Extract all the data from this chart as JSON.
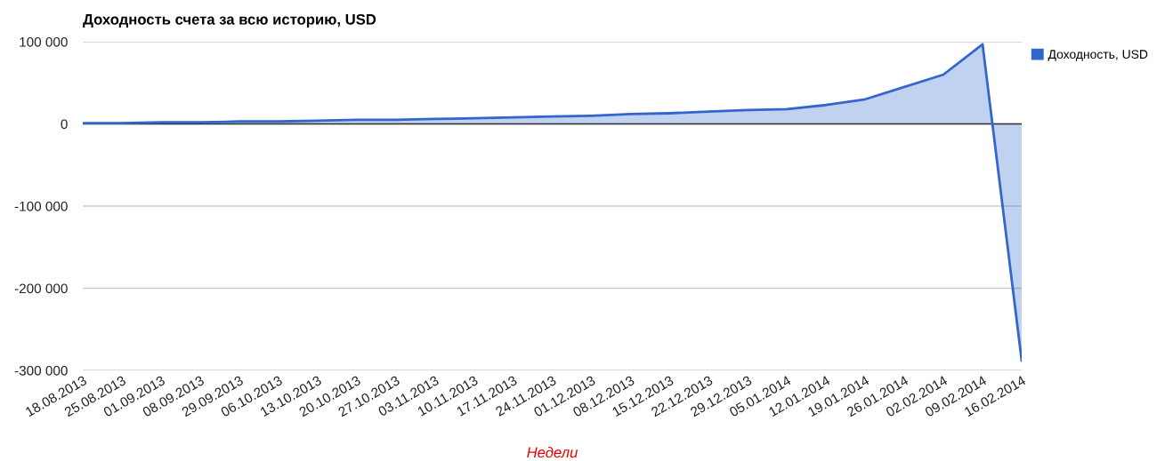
{
  "chart_data": {
    "type": "area",
    "title": "Доходность счета за всю историю, USD",
    "xlabel": "Недели",
    "categories": [
      "18.08.2013",
      "25.08.2013",
      "01.09.2013",
      "08.09.2013",
      "29.09.2013",
      "06.10.2013",
      "13.10.2013",
      "20.10.2013",
      "27.10.2013",
      "03.11.2013",
      "10.11.2013",
      "17.11.2013",
      "24.11.2013",
      "01.12.2013",
      "08.12.2013",
      "15.12.2013",
      "22.12.2013",
      "29.12.2013",
      "05.01.2014",
      "12.01.2014",
      "19.01.2014",
      "26.01.2014",
      "02.02.2014",
      "09.02.2014",
      "16.02.2014"
    ],
    "series": [
      {
        "name": "Доходность, USD",
        "color": "#3366cc",
        "values": [
          1000,
          1000,
          2000,
          2000,
          3000,
          3000,
          4000,
          5000,
          5000,
          6000,
          7000,
          8000,
          9000,
          10000,
          12000,
          13000,
          15000,
          17000,
          18000,
          23000,
          30000,
          45000,
          60000,
          97000,
          -288000
        ]
      }
    ],
    "ylim": [
      -300000,
      100000
    ],
    "yticks": [
      {
        "value": -300000,
        "label": "-300 000"
      },
      {
        "value": -200000,
        "label": "-200 000"
      },
      {
        "value": -100000,
        "label": "-100 000"
      },
      0,
      {
        "value": 100000,
        "label": "100 000"
      }
    ],
    "ref_lines": [
      {
        "axis": "y",
        "value": 0,
        "color": "#333333"
      }
    ],
    "grid": "y",
    "legend": "right"
  }
}
